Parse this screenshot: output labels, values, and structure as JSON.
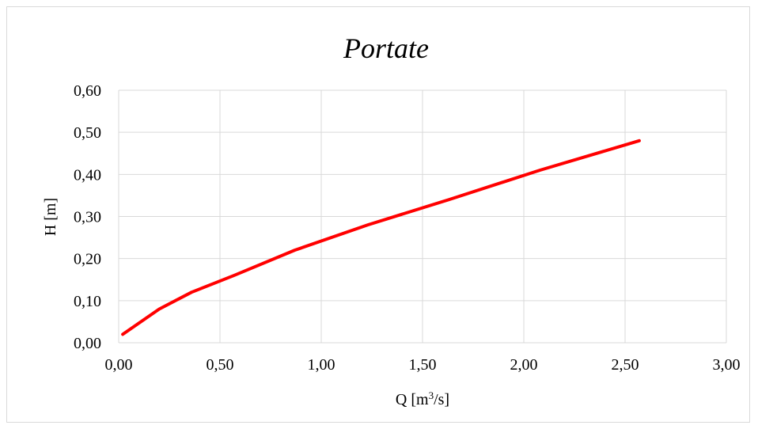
{
  "chart_data": {
    "type": "line",
    "title": "Portate",
    "xlabel": "Q [m3/s]",
    "xlabel_parts": {
      "main": "Q [m",
      "sup": "3",
      "tail": "/s]"
    },
    "ylabel": "H [m]",
    "xlim": [
      0,
      3
    ],
    "ylim": [
      0,
      0.6
    ],
    "x_ticks": [
      0,
      0.5,
      1,
      1.5,
      2,
      2.5,
      3
    ],
    "x_tick_labels": [
      "0,00",
      "0,50",
      "1,00",
      "1,50",
      "2,00",
      "2,50",
      "3,00"
    ],
    "y_ticks": [
      0,
      0.1,
      0.2,
      0.3,
      0.4,
      0.5,
      0.6
    ],
    "y_tick_labels": [
      "0,00",
      "0,10",
      "0,20",
      "0,30",
      "0,40",
      "0,50",
      "0,60"
    ],
    "grid": true,
    "legend": "none",
    "series": [
      {
        "color": "#ff0000",
        "x": [
          0.02,
          0.08,
          0.2,
          0.36,
          0.57,
          0.87,
          1.23,
          1.63,
          2.08,
          2.57
        ],
        "y": [
          0.02,
          0.04,
          0.08,
          0.12,
          0.16,
          0.22,
          0.28,
          0.34,
          0.41,
          0.48
        ]
      }
    ]
  }
}
